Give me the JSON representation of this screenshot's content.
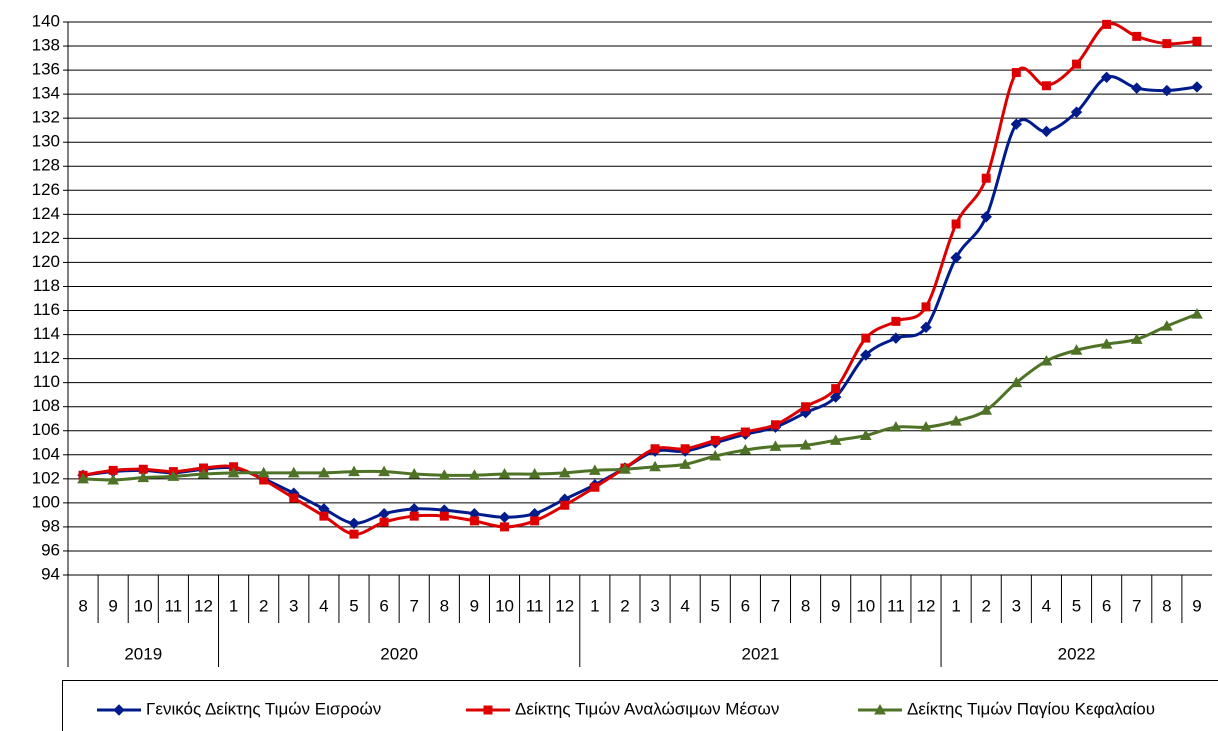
{
  "chart_data": {
    "type": "line",
    "groups": [
      {
        "name": "2019",
        "categories": [
          "8",
          "9",
          "10",
          "11",
          "12"
        ]
      },
      {
        "name": "2020",
        "categories": [
          "1",
          "2",
          "3",
          "4",
          "5",
          "6",
          "7",
          "8",
          "9",
          "10",
          "11",
          "12"
        ]
      },
      {
        "name": "2021",
        "categories": [
          "1",
          "2",
          "3",
          "4",
          "5",
          "6",
          "7",
          "8",
          "9",
          "10",
          "11",
          "12"
        ]
      },
      {
        "name": "2022",
        "categories": [
          "1",
          "2",
          "3",
          "4",
          "5",
          "6",
          "7",
          "8",
          "9"
        ]
      }
    ],
    "series": [
      {
        "name": "Γενικός Δείκτης Τιμών Εισροών",
        "color": "#001c8c",
        "marker": "diamond",
        "values": [
          102.3,
          102.6,
          102.7,
          102.5,
          102.8,
          102.9,
          102.0,
          100.8,
          99.5,
          98.3,
          99.1,
          99.5,
          99.4,
          99.1,
          98.8,
          99.1,
          100.3,
          101.5,
          102.9,
          104.3,
          104.3,
          105.0,
          105.7,
          106.3,
          107.5,
          108.8,
          112.3,
          113.7,
          114.6,
          120.4,
          123.8,
          131.5,
          130.9,
          132.5,
          135.4,
          134.5,
          134.3,
          134.6
        ]
      },
      {
        "name": "Δείκτης Τιμών Αναλώσιμων Μέσων",
        "color": "#dd0000",
        "marker": "square",
        "values": [
          102.3,
          102.7,
          102.8,
          102.6,
          102.9,
          103.0,
          101.9,
          100.4,
          98.9,
          97.4,
          98.4,
          98.9,
          98.9,
          98.5,
          98.0,
          98.5,
          99.8,
          101.3,
          102.9,
          104.5,
          104.5,
          105.2,
          105.9,
          106.5,
          108.0,
          109.5,
          113.7,
          115.1,
          116.3,
          123.2,
          127.0,
          135.8,
          134.7,
          136.5,
          139.8,
          138.8,
          138.2,
          138.4
        ]
      },
      {
        "name": "Δείκτης Τιμών Παγίου Κεφαλαίου",
        "color": "#4f7326",
        "marker": "triangle",
        "values": [
          102.0,
          101.9,
          102.1,
          102.2,
          102.4,
          102.5,
          102.5,
          102.5,
          102.5,
          102.6,
          102.6,
          102.4,
          102.3,
          102.3,
          102.4,
          102.4,
          102.5,
          102.7,
          102.8,
          103.0,
          103.2,
          103.9,
          104.4,
          104.7,
          104.8,
          105.2,
          105.6,
          106.3,
          106.3,
          106.8,
          107.7,
          110.0,
          111.8,
          112.7,
          113.2,
          113.6,
          114.7,
          115.7
        ]
      }
    ],
    "ylim": [
      94,
      140
    ],
    "yticks": [
      94,
      96,
      98,
      100,
      102,
      104,
      106,
      108,
      110,
      112,
      114,
      116,
      118,
      120,
      122,
      124,
      126,
      128,
      130,
      132,
      134,
      136,
      138,
      140
    ],
    "grid": true
  }
}
